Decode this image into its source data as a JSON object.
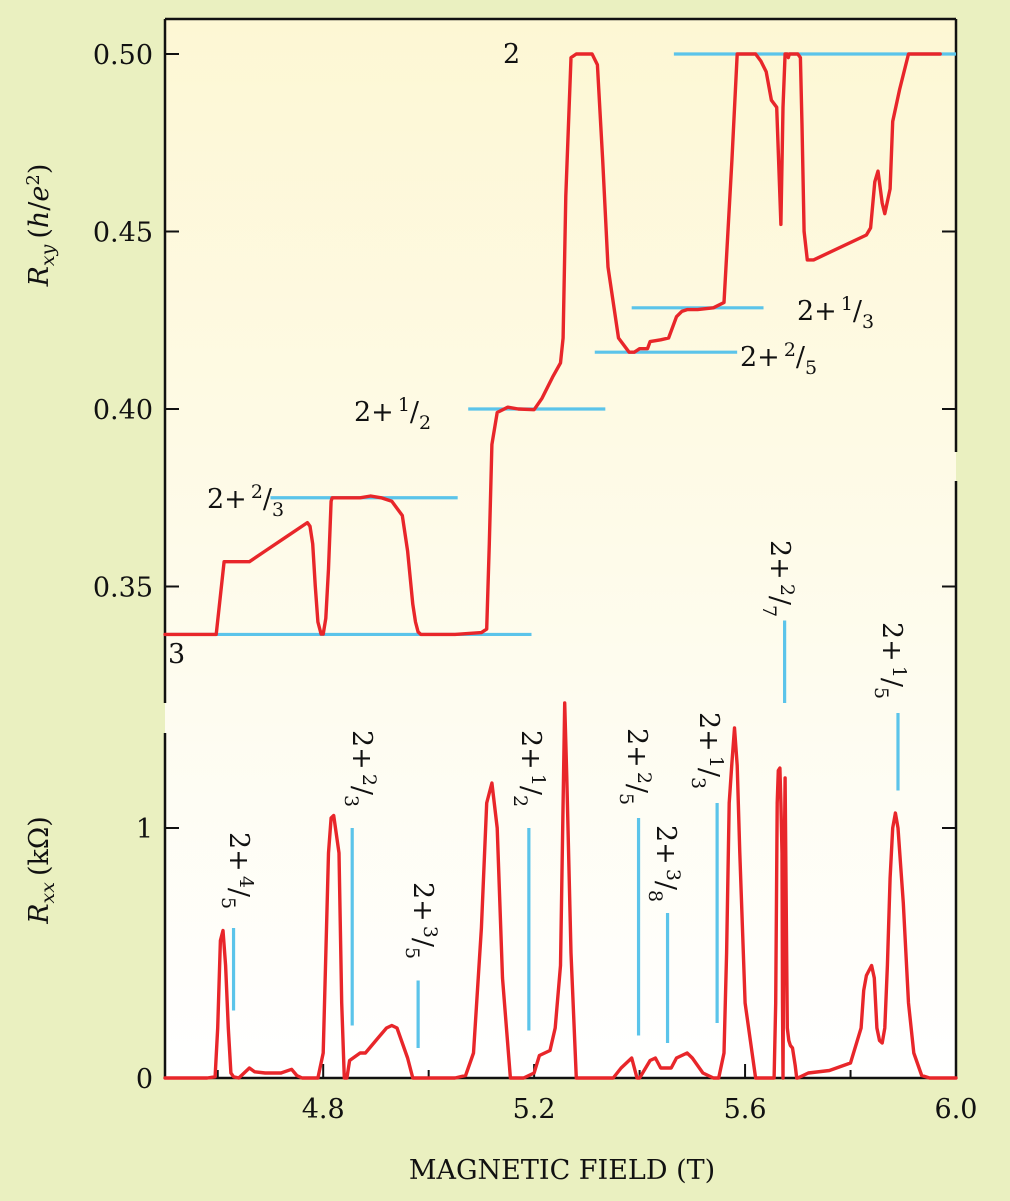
{
  "colors": {
    "background": "#eaf0c0",
    "panel_top": "#fdf7d4",
    "panel_bottom": "#ffffff",
    "curve": "#e8262a",
    "reference": "#5bc4ea",
    "axis": "#111111"
  },
  "chart_data": [
    {
      "type": "line",
      "panel": "top",
      "ylabel": "R_xy (h/e²)",
      "ylim": [
        0.32,
        0.51
      ],
      "yticks": [
        0.35,
        0.4,
        0.45,
        0.5
      ],
      "ytick_labels": [
        "0.35",
        "0.40",
        "0.45",
        "0.50"
      ],
      "series": [
        {
          "x": [
            4.5,
            4.597,
            4.612,
            4.618,
            4.66,
            4.69,
            4.73,
            4.77,
            4.775,
            4.78,
            4.785,
            4.79,
            4.796,
            4.8,
            4.805,
            4.81,
            4.815,
            4.817,
            4.83,
            4.87,
            4.89,
            4.91,
            4.93,
            4.95,
            4.96,
            4.97,
            4.975,
            4.98,
            4.985,
            5.0,
            5.05,
            5.1,
            5.11,
            5.115,
            5.12,
            5.13,
            5.15,
            5.17,
            5.2,
            5.215,
            5.235,
            5.25,
            5.255,
            5.26,
            5.27,
            5.28,
            5.29,
            5.31,
            5.32,
            5.33,
            5.34,
            5.36,
            5.38,
            5.39,
            5.4,
            5.415,
            5.42,
            5.44,
            5.455,
            5.47,
            5.48,
            5.49,
            5.51,
            5.54,
            5.56,
            5.575,
            5.585,
            5.6,
            5.62,
            5.63,
            5.64,
            5.65,
            5.66,
            5.668,
            5.672,
            5.676,
            5.68,
            5.682,
            5.684,
            5.7,
            5.705,
            5.708,
            5.712,
            5.718,
            5.73,
            5.83,
            5.838,
            5.846,
            5.852,
            5.86,
            5.865,
            5.875,
            5.88,
            5.893,
            5.91,
            5.93,
            5.97
          ],
          "y": [
            0.3365,
            0.3365,
            0.357,
            0.357,
            0.357,
            0.36,
            0.364,
            0.368,
            0.367,
            0.362,
            0.35,
            0.34,
            0.3366,
            0.3366,
            0.341,
            0.355,
            0.374,
            0.375,
            0.375,
            0.375,
            0.3755,
            0.375,
            0.374,
            0.37,
            0.36,
            0.345,
            0.34,
            0.3372,
            0.3365,
            0.3365,
            0.3365,
            0.337,
            0.338,
            0.362,
            0.39,
            0.399,
            0.4005,
            0.4,
            0.3998,
            0.403,
            0.409,
            0.413,
            0.42,
            0.46,
            0.499,
            0.5,
            0.5,
            0.5,
            0.497,
            0.47,
            0.44,
            0.42,
            0.416,
            0.416,
            0.417,
            0.417,
            0.419,
            0.4195,
            0.42,
            0.426,
            0.4275,
            0.428,
            0.428,
            0.4285,
            0.43,
            0.47,
            0.5,
            0.5,
            0.5,
            0.498,
            0.495,
            0.487,
            0.485,
            0.452,
            0.485,
            0.5,
            0.5,
            0.499,
            0.5,
            0.5,
            0.499,
            0.48,
            0.45,
            0.442,
            0.442,
            0.449,
            0.451,
            0.464,
            0.467,
            0.458,
            0.455,
            0.462,
            0.481,
            0.49,
            0.5,
            0.5,
            0.5
          ]
        }
      ],
      "reference_lines": [
        {
          "label": "3",
          "y": 0.3365,
          "x": [
            4.51,
            5.195
          ]
        },
        {
          "label": "2+²⁄₃",
          "y": 0.375,
          "x": [
            4.7,
            5.055
          ]
        },
        {
          "label": "2+¹⁄₂",
          "y": 0.4,
          "x": [
            5.075,
            5.335
          ]
        },
        {
          "label": "2+²⁄₅",
          "y": 0.416,
          "x": [
            5.315,
            5.585
          ]
        },
        {
          "label": "2+¹⁄₃",
          "y": 0.4285,
          "x": [
            5.385,
            5.635
          ]
        },
        {
          "label": "2",
          "y": 0.5,
          "x": [
            5.465,
            6.0
          ]
        }
      ],
      "annotations": [
        {
          "text": "3",
          "whole": "3",
          "num": "",
          "den": ""
        },
        {
          "text": "2+2/3",
          "whole": "2+",
          "num": "2",
          "den": "3"
        },
        {
          "text": "2+1/2",
          "whole": "2+",
          "num": "1",
          "den": "2"
        },
        {
          "text": "2+2/5",
          "whole": "2+",
          "num": "2",
          "den": "5"
        },
        {
          "text": "2+1/3",
          "whole": "2+",
          "num": "1",
          "den": "3"
        },
        {
          "text": "2",
          "whole": "2",
          "num": "",
          "den": ""
        }
      ]
    },
    {
      "type": "line",
      "panel": "bottom",
      "xlabel": "MAGNETIC FIELD (T)",
      "ylabel": "R_xx (kΩ)",
      "xlim": [
        4.5,
        6.0
      ],
      "xticks": [
        4.8,
        5.2,
        5.6,
        6.0
      ],
      "xtick_labels": [
        "4.8",
        "5.2",
        "5.6",
        "6.0"
      ],
      "ylim": [
        0,
        1.38
      ],
      "yticks": [
        0,
        1
      ],
      "ytick_labels": [
        "0",
        "1"
      ],
      "series": [
        {
          "x": [
            4.5,
            4.58,
            4.595,
            4.6,
            4.605,
            4.61,
            4.615,
            4.62,
            4.625,
            4.63,
            4.64,
            4.65,
            4.66,
            4.67,
            4.69,
            4.72,
            4.74,
            4.75,
            4.76,
            4.79,
            4.8,
            4.81,
            4.815,
            4.82,
            4.83,
            4.835,
            4.84,
            4.843,
            4.845,
            4.85,
            4.87,
            4.88,
            4.9,
            4.92,
            4.93,
            4.94,
            4.95,
            4.96,
            4.97,
            5.0,
            5.05,
            5.07,
            5.085,
            5.1,
            5.11,
            5.12,
            5.13,
            5.14,
            5.155,
            5.18,
            5.2,
            5.21,
            5.23,
            5.24,
            5.25,
            5.255,
            5.258,
            5.262,
            5.27,
            5.28,
            5.29,
            5.35,
            5.365,
            5.375,
            5.385,
            5.395,
            5.4,
            5.42,
            5.43,
            5.44,
            5.46,
            5.47,
            5.48,
            5.49,
            5.5,
            5.51,
            5.52,
            5.54,
            5.55,
            5.56,
            5.565,
            5.57,
            5.575,
            5.58,
            5.585,
            5.59,
            5.6,
            5.62,
            5.635,
            5.65,
            5.655,
            5.658,
            5.661,
            5.663,
            5.666,
            5.668,
            5.67,
            5.671,
            5.672,
            5.674,
            5.676,
            5.68,
            5.683,
            5.686,
            5.69,
            5.695,
            5.698,
            5.7,
            5.72,
            5.76,
            5.8,
            5.82,
            5.825,
            5.83,
            5.84,
            5.845,
            5.85,
            5.855,
            5.86,
            5.865,
            5.87,
            5.875,
            5.88,
            5.885,
            5.89,
            5.9,
            5.91,
            5.92,
            5.935,
            5.95,
            5.97,
            6.0
          ],
          "y": [
            0.0,
            0.0,
            0.005,
            0.2,
            0.55,
            0.59,
            0.45,
            0.2,
            0.02,
            0.005,
            0.0,
            0.02,
            0.04,
            0.025,
            0.02,
            0.02,
            0.035,
            0.01,
            0.0,
            0.0,
            0.1,
            0.9,
            1.04,
            1.05,
            0.9,
            0.3,
            0.0,
            0.0,
            0.0,
            0.07,
            0.1,
            0.1,
            0.15,
            0.2,
            0.21,
            0.2,
            0.14,
            0.08,
            0.0,
            0.0,
            0.0,
            0.01,
            0.1,
            0.6,
            1.1,
            1.18,
            1.0,
            0.4,
            0.0,
            0.0,
            0.02,
            0.09,
            0.11,
            0.2,
            0.45,
            1.1,
            1.5,
            1.2,
            0.5,
            0.0,
            0.0,
            0.0,
            0.04,
            0.06,
            0.08,
            0.0,
            0.0,
            0.07,
            0.08,
            0.04,
            0.04,
            0.08,
            0.09,
            0.1,
            0.08,
            0.05,
            0.02,
            0.0,
            0.0,
            0.1,
            0.5,
            1.1,
            1.26,
            1.4,
            1.25,
            0.9,
            0.3,
            0.0,
            0.0,
            0.0,
            0.0,
            0.3,
            1.1,
            1.23,
            1.24,
            1.1,
            0.9,
            0.3,
            0.0,
            0.8,
            1.2,
            0.2,
            0.15,
            0.13,
            0.12,
            0.05,
            0.0,
            0.0,
            0.02,
            0.03,
            0.06,
            0.2,
            0.35,
            0.41,
            0.45,
            0.4,
            0.2,
            0.15,
            0.14,
            0.2,
            0.45,
            0.8,
            1.0,
            1.06,
            1.0,
            0.7,
            0.3,
            0.1,
            0.01,
            0.0,
            0.0,
            0.0
          ]
        }
      ],
      "reference_lines": [
        {
          "label": "2+⁴⁄₅",
          "x": 4.63,
          "y": [
            0.27,
            0.6
          ]
        },
        {
          "label": "2+²⁄₃",
          "x": 4.855,
          "y": [
            0.21,
            1.0
          ]
        },
        {
          "label": "2+³⁄₅",
          "x": 4.98,
          "y": [
            0.12,
            0.39
          ]
        },
        {
          "label": "2+¹⁄₂",
          "x": 5.19,
          "y": [
            0.19,
            1.0
          ]
        },
        {
          "label": "2+²⁄₅",
          "x": 5.398,
          "y": [
            0.17,
            1.04
          ]
        },
        {
          "label": "2+³⁄₈",
          "x": 5.453,
          "y": [
            0.14,
            0.66
          ]
        },
        {
          "label": "2+¹⁄₃",
          "x": 5.547,
          "y": [
            0.22,
            1.1
          ]
        },
        {
          "label": "2+²⁄₇",
          "x": 5.675,
          "y": [
            1.5,
            1.83
          ]
        },
        {
          "label": "2+¹⁄₅",
          "x": 5.89,
          "y": [
            1.15,
            1.46
          ]
        }
      ],
      "annotations": [
        {
          "text": "2+4/5",
          "whole": "2+",
          "num": "4",
          "den": "5"
        },
        {
          "text": "2+2/3",
          "whole": "2+",
          "num": "2",
          "den": "3"
        },
        {
          "text": "2+3/5",
          "whole": "2+",
          "num": "3",
          "den": "5"
        },
        {
          "text": "2+1/2",
          "whole": "2+",
          "num": "1",
          "den": "2"
        },
        {
          "text": "2+2/5",
          "whole": "2+",
          "num": "2",
          "den": "5"
        },
        {
          "text": "2+3/8",
          "whole": "2+",
          "num": "3",
          "den": "8"
        },
        {
          "text": "2+1/3",
          "whole": "2+",
          "num": "1",
          "den": "3"
        },
        {
          "text": "2+2/7",
          "whole": "2+",
          "num": "2",
          "den": "7"
        },
        {
          "text": "2+1/5",
          "whole": "2+",
          "num": "1",
          "den": "5"
        }
      ]
    }
  ]
}
